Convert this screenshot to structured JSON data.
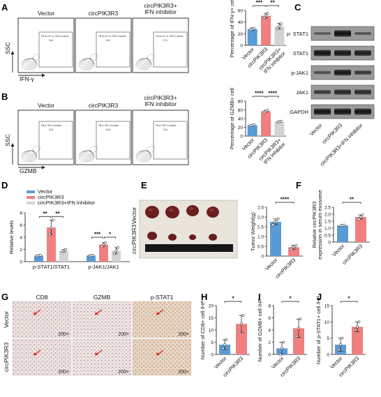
{
  "colors": {
    "vector": "#5b9bd5",
    "circ": "#f08080",
    "inhib": "#d3d3d3",
    "err": "#333333"
  },
  "panel_labels": [
    "A",
    "B",
    "C",
    "D",
    "E",
    "F",
    "G",
    "H",
    "I",
    "J"
  ],
  "flow_A": {
    "titles": [
      "Vector",
      "circPIK3R3",
      "circPIK3R3+\nIFN inhibitor"
    ],
    "gate_label": "FB-ALCLT-A, SSC-A subset",
    "gate_values": [
      "26.6",
      "60.5",
      "27.5"
    ],
    "y_axis": "SSC",
    "x_axis": "IFN-γ"
  },
  "flow_B": {
    "titles": [
      "Vector",
      "circPIK3R3",
      "circPIK3R3+\nIFN inhibitor"
    ],
    "gate_label": "FB-A, SSC-A subset",
    "gate_values": [
      "26.6",
      "60.8",
      "32.6"
    ],
    "y_axis": "SSC",
    "x_axis": "GZMB"
  },
  "western": {
    "bands": [
      "p- STAT1",
      "STAT1",
      "p-JAK1",
      "JAK1",
      "GAPDH"
    ],
    "lanes": [
      "Vector",
      "circPIK3R3",
      "circPIK3R3+IFN inhibitor"
    ]
  },
  "legend_D": [
    "Vector",
    "circPIK3R3",
    "circPIK3R3+IFN inhibitor"
  ],
  "E": {
    "row_labels": [
      "Vector",
      "circPIK3R3"
    ],
    "ruler": [
      "1",
      "2",
      "3",
      "4",
      "5",
      "6",
      "7",
      "8",
      "9",
      "10",
      "11",
      "12"
    ]
  },
  "G": {
    "col_labels": [
      "CD8",
      "GZMB",
      "p-STAT1"
    ],
    "row_labels": [
      "Vector",
      "circPIK3R3"
    ],
    "magnification": "200×"
  },
  "chart_data": [
    {
      "id": "A",
      "type": "bar",
      "categories": [
        "Vector",
        "circPIK3R3",
        "circPIK3R3+\nIFN inhibitor"
      ],
      "values": [
        28,
        51,
        33
      ],
      "errors": [
        2,
        4,
        5
      ],
      "points": [
        [
          27,
          28,
          29
        ],
        [
          48,
          51,
          55
        ],
        [
          28,
          33,
          37
        ]
      ],
      "ylabel": "Percentage of IFN-γ+ cell",
      "ylim": [
        0,
        60
      ],
      "yticks": [
        0,
        20,
        40,
        60
      ],
      "sig": [
        {
          "from": 0,
          "to": 1,
          "label": "***",
          "level": 0
        },
        {
          "from": 1,
          "to": 2,
          "label": "**",
          "level": 0
        }
      ]
    },
    {
      "id": "B",
      "type": "bar",
      "categories": [
        "Vector",
        "circPIK3R3",
        "circPIK3R3+\nIFN inhibitor"
      ],
      "values": [
        25,
        57,
        33
      ],
      "errors": [
        1.5,
        2,
        1
      ],
      "points": [
        [
          24,
          25,
          26
        ],
        [
          55,
          57,
          59
        ],
        [
          32,
          33,
          34
        ]
      ],
      "ylabel": "Percentage of GZMB+ cell",
      "ylim": [
        0,
        80
      ],
      "yticks": [
        0,
        20,
        40,
        60,
        80
      ],
      "sig": [
        {
          "from": 0,
          "to": 1,
          "label": "****",
          "level": 0
        },
        {
          "from": 1,
          "to": 2,
          "label": "****",
          "level": 0
        }
      ]
    },
    {
      "id": "D",
      "type": "bar",
      "groups": [
        "p-STAT1/STAT1",
        "p-JAK1/JAK1"
      ],
      "series": [
        {
          "name": "Vector",
          "values": [
            1.0,
            1.0
          ],
          "errors": [
            0.1,
            0.1
          ],
          "points": [
            [
              0.95,
              1.0,
              1.05
            ],
            [
              0.95,
              1.0,
              1.05
            ]
          ]
        },
        {
          "name": "circPIK3R3",
          "values": [
            5.6,
            2.8
          ],
          "errors": [
            1.2,
            0.3
          ],
          "points": [
            [
              4.5,
              5.5,
              6.8
            ],
            [
              2.5,
              2.8,
              3.1
            ]
          ]
        },
        {
          "name": "circPIK3R3+IFN inhibitor",
          "values": [
            1.8,
            1.8
          ],
          "errors": [
            0.2,
            0.5
          ],
          "points": [
            [
              1.6,
              1.8,
              2.0
            ],
            [
              1.3,
              1.8,
              2.3
            ]
          ]
        }
      ],
      "ylabel": "Relative levels",
      "ylim": [
        0,
        8
      ],
      "yticks": [
        0,
        2,
        4,
        6,
        8
      ],
      "sig": [
        {
          "group": 0,
          "from": 0,
          "to": 1,
          "label": "**"
        },
        {
          "group": 0,
          "from": 1,
          "to": 2,
          "label": "**"
        },
        {
          "group": 1,
          "from": 0,
          "to": 1,
          "label": "***"
        },
        {
          "group": 1,
          "from": 1,
          "to": 2,
          "label": "*"
        }
      ]
    },
    {
      "id": "E",
      "type": "bar",
      "categories": [
        "Vector",
        "circPIK3R3"
      ],
      "values": [
        1.75,
        0.45
      ],
      "errors": [
        0.15,
        0.1
      ],
      "points": [
        [
          1.6,
          1.75,
          1.85,
          1.9
        ],
        [
          0.35,
          0.45,
          0.5,
          0.55
        ]
      ],
      "ylabel": "Tumor Weight(g)",
      "ylim": [
        0,
        2.5
      ],
      "yticks": [
        0,
        0.5,
        1.0,
        1.5,
        2.0,
        2.5
      ],
      "ytick_labels": [
        "0",
        "0.5",
        "1.0",
        "1.5",
        "2.0",
        "2.5"
      ],
      "sig": [
        {
          "from": 0,
          "to": 1,
          "label": "****",
          "level": 0
        }
      ]
    },
    {
      "id": "F",
      "type": "bar",
      "categories": [
        "Vector",
        "circPIK3R3"
      ],
      "values": [
        1.2,
        1.8
      ],
      "errors": [
        0.03,
        0.15
      ],
      "points": [
        [
          1.18,
          1.2,
          1.22
        ],
        [
          1.65,
          1.8,
          1.95
        ]
      ],
      "ylabel": "Relative circPIK3R3\nexpression in serum exosome",
      "ylim": [
        0,
        2.5
      ],
      "yticks": [
        0,
        0.5,
        1.0,
        1.5,
        2.0,
        2.5
      ],
      "ytick_labels": [
        "0",
        "0.5",
        "1.0",
        "1.5",
        "2.0",
        "2.5"
      ],
      "sig": [
        {
          "from": 0,
          "to": 1,
          "label": "**",
          "level": 0
        }
      ]
    },
    {
      "id": "H",
      "type": "bar",
      "categories": [
        "Vector",
        "circPIK3R3"
      ],
      "values": [
        4,
        12.5
      ],
      "errors": [
        2,
        3.5
      ],
      "points": [
        [
          2.5,
          4,
          6
        ],
        [
          9,
          12.5,
          16
        ]
      ],
      "ylabel": "Number of CD8+ cell /HP",
      "ylim": [
        0,
        20
      ],
      "yticks": [
        0,
        5,
        10,
        15,
        20
      ],
      "sig": [
        {
          "from": 0,
          "to": 1,
          "label": "*",
          "level": 0
        }
      ]
    },
    {
      "id": "I",
      "type": "bar",
      "categories": [
        "Vector",
        "circPIK3R3"
      ],
      "values": [
        1,
        4.3
      ],
      "errors": [
        1,
        1.5
      ],
      "points": [
        [
          0,
          1,
          2
        ],
        [
          3,
          4.3,
          5.8
        ]
      ],
      "ylabel": "Number of GZMB+ cell /HP",
      "ylim": [
        0,
        8
      ],
      "yticks": [
        0,
        2,
        4,
        6,
        8
      ],
      "sig": [
        {
          "from": 0,
          "to": 1,
          "label": "*",
          "level": 0
        }
      ]
    },
    {
      "id": "J",
      "type": "bar",
      "categories": [
        "Vector",
        "circPIK3R3"
      ],
      "values": [
        3,
        8.5
      ],
      "errors": [
        2,
        1.5
      ],
      "points": [
        [
          1.5,
          3,
          5
        ],
        [
          7.5,
          8.5,
          10
        ]
      ],
      "ylabel": "Number of p-STAT1+ cell /HP",
      "ylim": [
        0,
        15
      ],
      "yticks": [
        0,
        5,
        10,
        15
      ],
      "sig": [
        {
          "from": 0,
          "to": 1,
          "label": "*",
          "level": 0
        }
      ]
    }
  ]
}
